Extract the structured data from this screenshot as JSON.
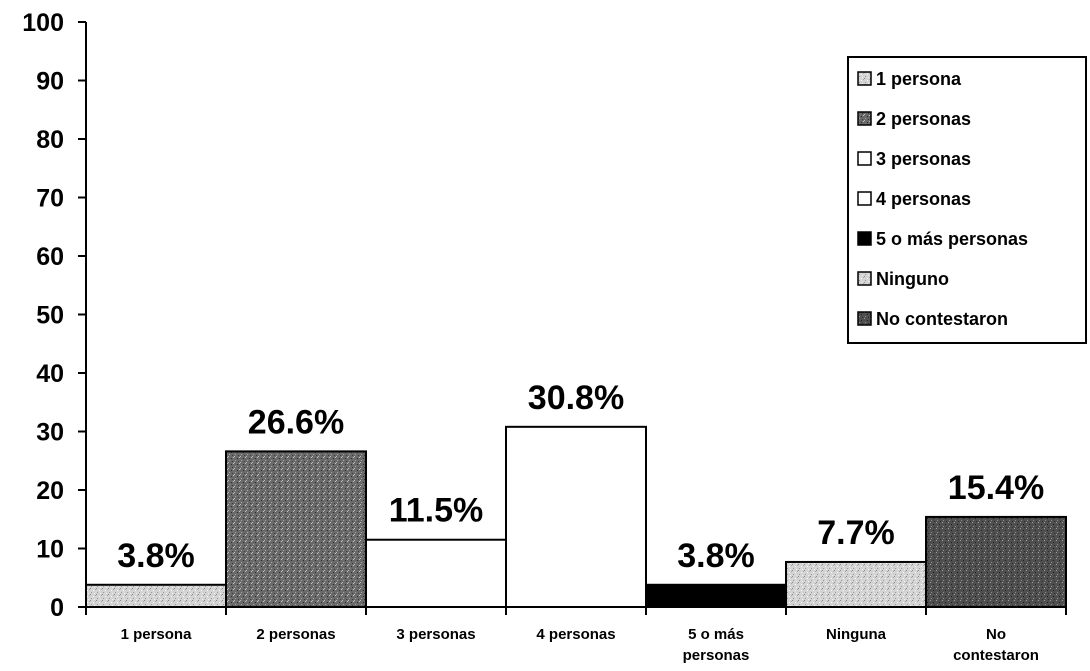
{
  "chart_data": {
    "type": "bar",
    "categories": [
      "1 persona",
      "2 personas",
      "3 personas",
      "4 personas",
      "5 o más personas",
      "Ninguna",
      "No contestaron"
    ],
    "category_label_lines": [
      [
        "1 persona"
      ],
      [
        "2 personas"
      ],
      [
        "3 personas"
      ],
      [
        "4 personas"
      ],
      [
        "5 o más",
        "personas"
      ],
      [
        "Ninguna"
      ],
      [
        "No",
        "contestaron"
      ]
    ],
    "values": [
      3.8,
      26.6,
      11.5,
      30.8,
      3.8,
      7.7,
      15.4
    ],
    "data_labels": [
      "3.8%",
      "26.6%",
      "11.5%",
      "30.8%",
      "3.8%",
      "7.7%",
      "15.4%"
    ],
    "ylim": [
      0,
      100
    ],
    "yticks": [
      0,
      10,
      20,
      30,
      40,
      50,
      60,
      70,
      80,
      90,
      100
    ],
    "grid": false,
    "legend_position": "top-right",
    "legend": [
      "1 persona",
      "2 personas",
      "3 personas",
      "4 personas",
      "5 o más personas",
      "Ninguno",
      "No contestaron"
    ],
    "colors": [
      "#c9c9c9",
      "#6f6f6f",
      "#ffffff",
      "#ffffff",
      "#000000",
      "#d2d2d2",
      "#555555"
    ],
    "patterned": [
      true,
      true,
      false,
      false,
      false,
      true,
      true
    ],
    "title": "",
    "xlabel": "",
    "ylabel": ""
  }
}
